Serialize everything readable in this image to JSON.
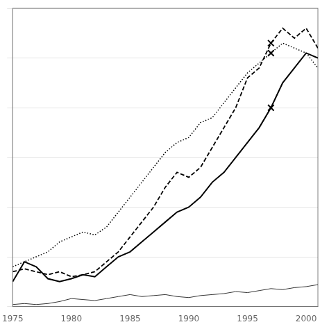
{
  "chart_data": {
    "type": "line",
    "x": [
      1975,
      1976,
      1977,
      1978,
      1979,
      1980,
      1981,
      1982,
      1983,
      1984,
      1985,
      1986,
      1987,
      1988,
      1989,
      1990,
      1991,
      1992,
      1993,
      1994,
      1995,
      1996,
      1997,
      1998,
      1999,
      2000,
      2001
    ],
    "series": [
      {
        "color": "#000000",
        "line_style": "solid",
        "values": [
          2.5,
          4.5,
          4.0,
          2.8,
          2.5,
          2.8,
          3.2,
          3.0,
          4.0,
          5.0,
          5.5,
          6.5,
          7.5,
          8.5,
          9.5,
          10.0,
          11.0,
          12.5,
          13.5,
          15.0,
          16.5,
          18.0,
          20.0,
          22.5,
          24.0,
          25.5,
          25.0
        ]
      },
      {
        "color": "#000000",
        "line_style": "dashed",
        "values": [
          3.5,
          3.8,
          3.5,
          3.2,
          3.5,
          3.0,
          3.2,
          3.5,
          4.5,
          5.5,
          7.0,
          8.5,
          10.0,
          12.0,
          13.5,
          13.0,
          14.0,
          16.0,
          18.0,
          20.0,
          23.0,
          24.0,
          26.5,
          28.0,
          27.0,
          28.0,
          26.0
        ]
      },
      {
        "color": "#000000",
        "line_style": "dotted",
        "values": [
          4.0,
          4.5,
          5.0,
          5.5,
          6.5,
          7.0,
          7.5,
          7.2,
          8.0,
          9.5,
          11.0,
          12.5,
          14.0,
          15.5,
          16.5,
          17.0,
          18.5,
          19.0,
          20.5,
          22.0,
          23.5,
          24.5,
          25.5,
          26.5,
          26.0,
          25.5,
          24.0
        ]
      },
      {
        "color": "#000000",
        "line_style": "solid",
        "values": [
          0.2,
          0.3,
          0.2,
          0.3,
          0.5,
          0.8,
          0.7,
          0.6,
          0.8,
          1.0,
          1.2,
          1.0,
          1.1,
          1.2,
          1.0,
          0.9,
          1.1,
          1.2,
          1.3,
          1.5,
          1.4,
          1.6,
          1.8,
          1.7,
          1.9,
          2.0,
          2.2
        ]
      },
      {
        "type": "scatter",
        "marker": "x",
        "color": "#000000",
        "x": [
          1997,
          1997,
          1997
        ],
        "values": [
          20.0,
          26.5,
          25.5
        ]
      }
    ],
    "xlim": [
      1975,
      2001
    ],
    "xticks": [
      1975,
      1980,
      1985,
      1990,
      1995,
      2000
    ],
    "ylim": [
      0,
      30
    ],
    "yticks": [
      0,
      5,
      10,
      15,
      20,
      25,
      30
    ],
    "grid": "y",
    "tick_labels": "x"
  }
}
